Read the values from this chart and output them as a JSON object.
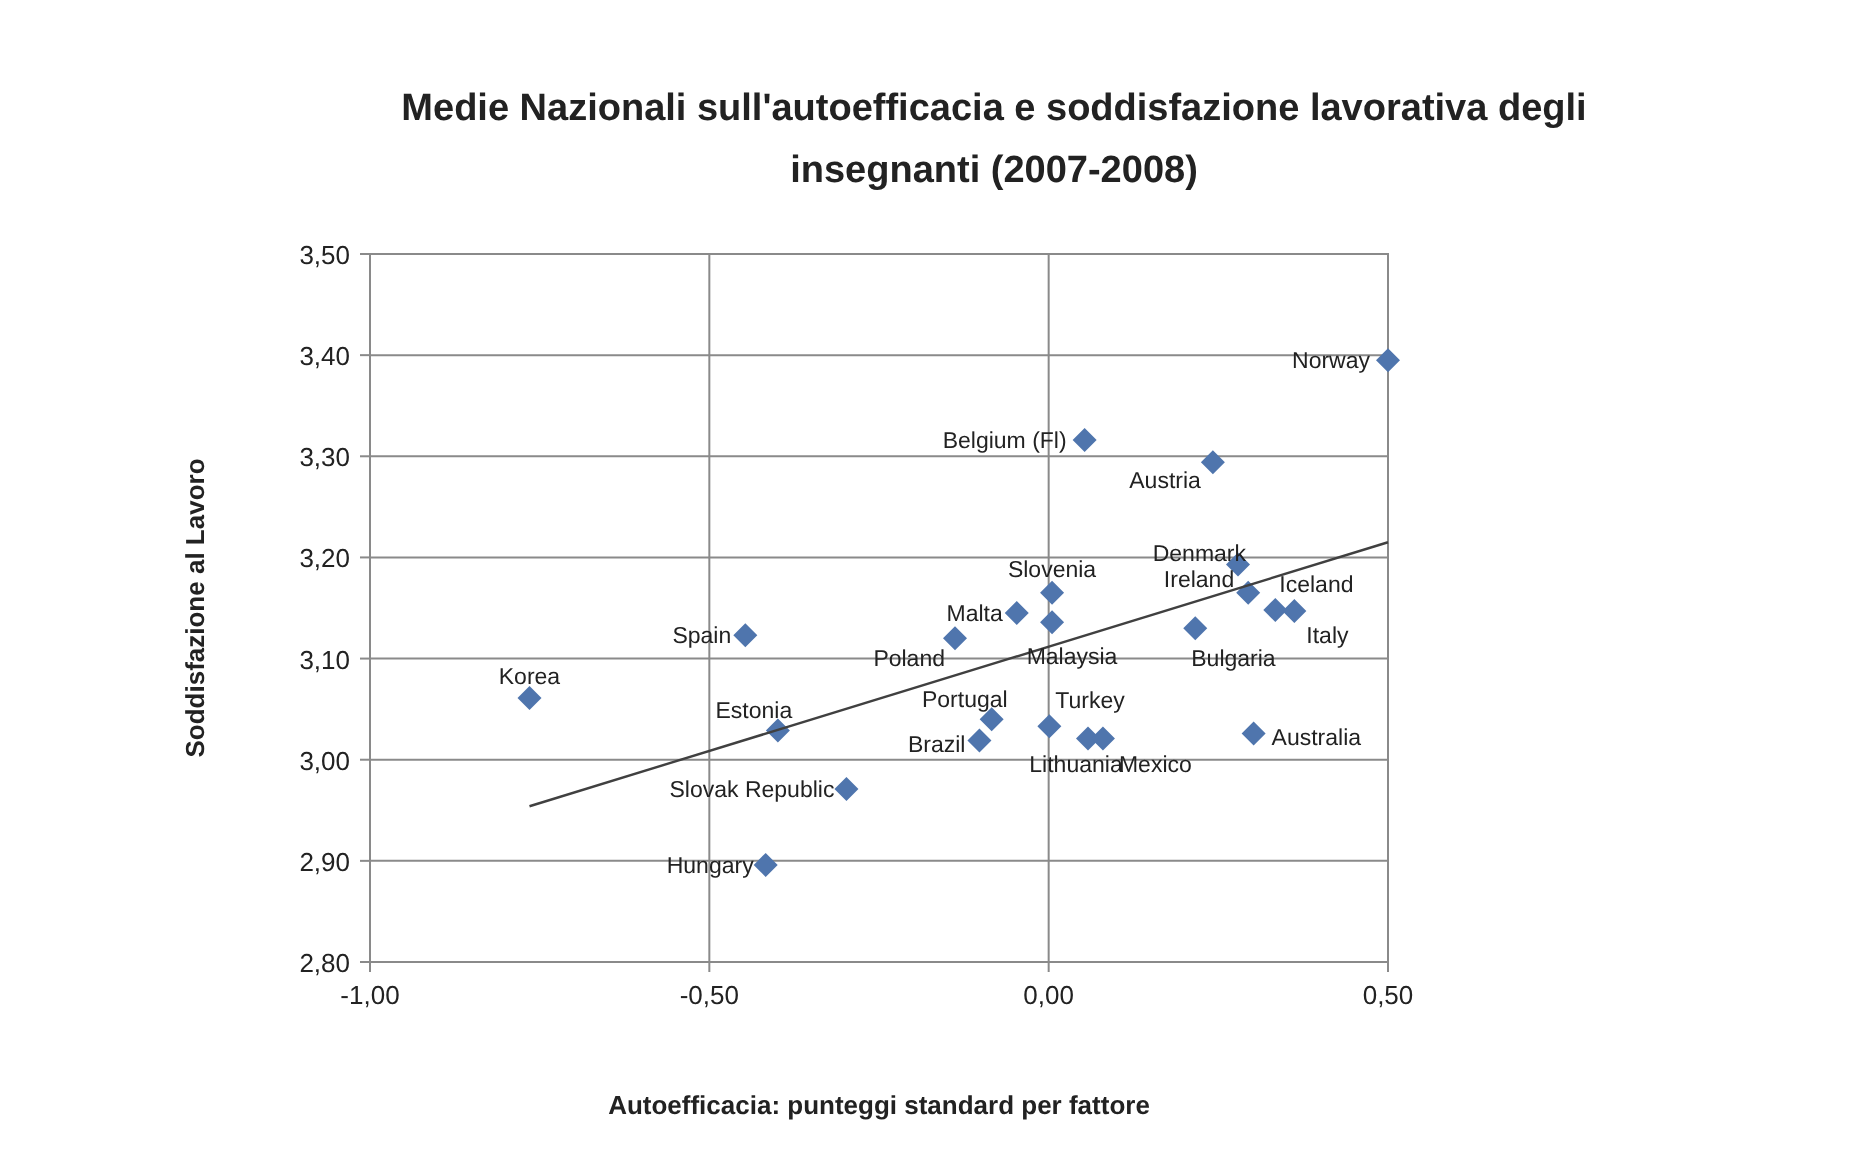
{
  "chart_data": {
    "type": "scatter",
    "title": "Medie Nazionali sull'autoefficacia e soddisfazione lavorativa degli insegnanti (2007-2008)",
    "xlabel": "Autoefficacia: punteggi standard per fattore",
    "ylabel": "Soddisfazione al Lavoro",
    "xlim": [
      -1,
      0.5
    ],
    "ylim": [
      2.8,
      3.5
    ],
    "xticks": [
      {
        "value": -1,
        "label": "-1,00"
      },
      {
        "value": -0.5,
        "label": "-0,50"
      },
      {
        "value": 0,
        "label": "0,00"
      },
      {
        "value": 0.5,
        "label": "0,50"
      }
    ],
    "yticks": [
      {
        "value": 2.8,
        "label": "2,80"
      },
      {
        "value": 2.9,
        "label": "2,90"
      },
      {
        "value": 3.0,
        "label": "3,00"
      },
      {
        "value": 3.1,
        "label": "3,10"
      },
      {
        "value": 3.2,
        "label": "3,20"
      },
      {
        "value": 3.3,
        "label": "3,30"
      },
      {
        "value": 3.4,
        "label": "3,40"
      },
      {
        "value": 3.5,
        "label": "3,50"
      }
    ],
    "grid": true,
    "series": [
      {
        "marker": "diamond",
        "color": "#4f75ad",
        "x": [
          0.5,
          0.053,
          0.242,
          0.279,
          0.005,
          0.294,
          0.334,
          0.362,
          -0.047,
          0.005,
          0.216,
          -0.447,
          -0.138,
          -0.765,
          -0.084,
          -0.399,
          0.001,
          -0.102,
          0.058,
          0.08,
          0.302,
          -0.298,
          -0.417
        ],
        "values": [
          3.395,
          3.316,
          3.294,
          3.193,
          3.165,
          3.165,
          3.148,
          3.147,
          3.145,
          3.136,
          3.13,
          3.123,
          3.12,
          3.061,
          3.04,
          3.029,
          3.033,
          3.019,
          3.021,
          3.021,
          3.026,
          2.971,
          2.896
        ]
      },
      {
        "type": "line",
        "color": "#404040",
        "x": [
          -0.765,
          0.5
        ],
        "values": [
          2.954,
          3.215
        ]
      }
    ],
    "annotations": [
      {
        "text": "Norway",
        "x": 0.5,
        "y": 3.395
      },
      {
        "text": "Belgium (Fl)",
        "x": 0.053,
        "y": 3.316
      },
      {
        "text": "Austria",
        "x": 0.242,
        "y": 3.294
      },
      {
        "text": "Denmark",
        "x": 0.279,
        "y": 3.193
      },
      {
        "text": "Slovenia",
        "x": 0.005,
        "y": 3.165
      },
      {
        "text": "Ireland",
        "x": 0.294,
        "y": 3.165
      },
      {
        "text": "Iceland",
        "x": 0.334,
        "y": 3.148
      },
      {
        "text": "Italy",
        "x": 0.362,
        "y": 3.147
      },
      {
        "text": "Malta",
        "x": -0.047,
        "y": 3.145
      },
      {
        "text": "Malaysia",
        "x": 0.005,
        "y": 3.136
      },
      {
        "text": "Bulgaria",
        "x": 0.216,
        "y": 3.13
      },
      {
        "text": "Spain",
        "x": -0.447,
        "y": 3.123
      },
      {
        "text": "Poland",
        "x": -0.138,
        "y": 3.12
      },
      {
        "text": "Korea",
        "x": -0.765,
        "y": 3.061
      },
      {
        "text": "Portugal",
        "x": -0.084,
        "y": 3.04
      },
      {
        "text": "Estonia",
        "x": -0.399,
        "y": 3.029
      },
      {
        "text": "Turkey",
        "x": 0.001,
        "y": 3.033
      },
      {
        "text": "Brazil",
        "x": -0.102,
        "y": 3.019
      },
      {
        "text": "Lithuania",
        "x": 0.058,
        "y": 3.021
      },
      {
        "text": "Mexico",
        "x": 0.08,
        "y": 3.021
      },
      {
        "text": "Australia",
        "x": 0.302,
        "y": 3.026
      },
      {
        "text": "Slovak Republic",
        "x": -0.298,
        "y": 2.971
      },
      {
        "text": "Hungary",
        "x": -0.417,
        "y": 2.896
      }
    ]
  }
}
